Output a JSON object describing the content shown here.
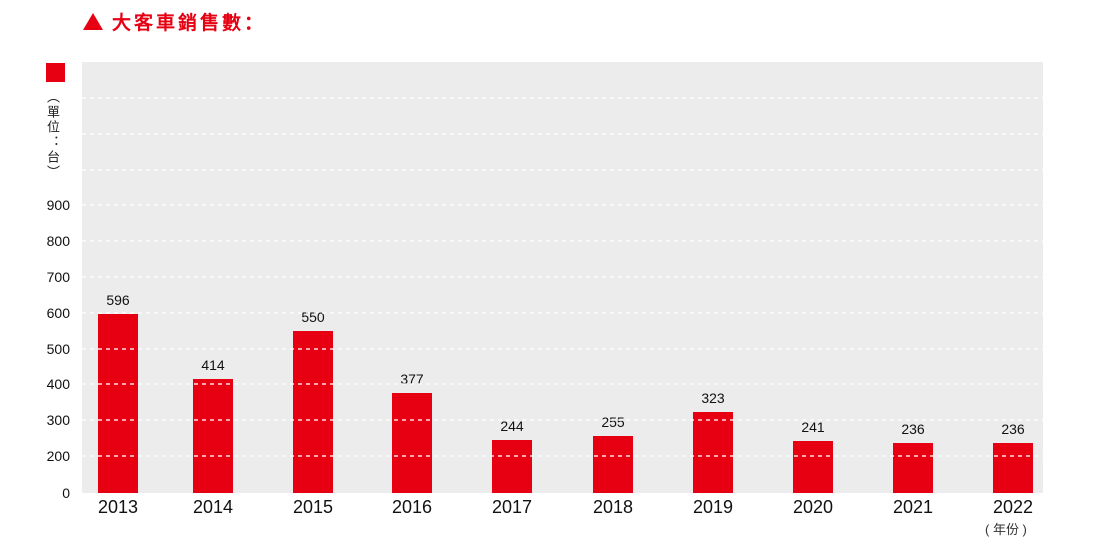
{
  "title": {
    "marker": "triangle",
    "text": "大客車銷售數："
  },
  "legend": {
    "swatch_color": "#e60012"
  },
  "unit_label": "（單位：台）",
  "year_note": "( 年份 )",
  "colors": {
    "accent": "#e60012",
    "plot_background": "#ececec",
    "gridline": "rgba(255,255,255,0.65)",
    "text": "#111111"
  },
  "chart_data": {
    "type": "bar",
    "title": "大客車銷售數",
    "xlabel": "年份",
    "ylabel": "單位：台",
    "categories": [
      "2013",
      "2014",
      "2015",
      "2016",
      "2017",
      "2018",
      "2019",
      "2020",
      "2021",
      "2022"
    ],
    "values": [
      596,
      414,
      550,
      377,
      244,
      255,
      323,
      241,
      236,
      236
    ],
    "y_ticks": [
      900,
      800,
      700,
      600,
      500,
      400,
      300,
      200,
      0
    ],
    "ylim": [
      0,
      1200
    ],
    "grid": "horizontal-dashed-white",
    "legend_position": "top-left",
    "bar_color": "#e60012",
    "data_labels": true
  }
}
